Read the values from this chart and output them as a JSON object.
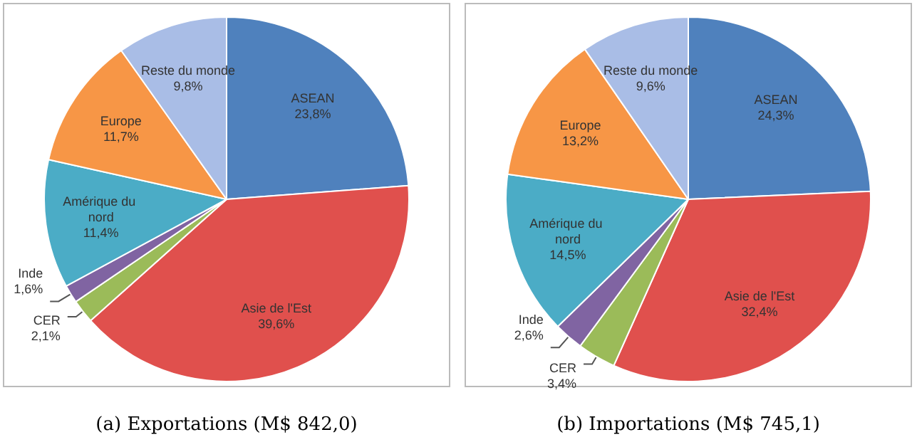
{
  "chart_data": [
    {
      "type": "pie",
      "title": "(a) Exportations (M$ 842,0)",
      "categories": [
        "ASEAN",
        "Asie de l'Est",
        "CER",
        "Inde",
        "Amérique du nord",
        "Europe",
        "Reste du monde"
      ],
      "values": [
        23.8,
        39.6,
        2.1,
        1.6,
        11.4,
        11.7,
        9.8
      ],
      "value_labels": [
        "23,8%",
        "39,6%",
        "2,1%",
        "1,6%",
        "11,4%",
        "11,7%",
        "9,8%"
      ],
      "colors": [
        "#4f81bd",
        "#e0504d",
        "#9bbb59",
        "#8064a2",
        "#4bacc6",
        "#f79646",
        "#a9bde6"
      ]
    },
    {
      "type": "pie",
      "title": "(b) Importations (M$ 745,1)",
      "categories": [
        "ASEAN",
        "Asie de l'Est",
        "CER",
        "Inde",
        "Amérique du nord",
        "Europe",
        "Reste du monde"
      ],
      "values": [
        24.3,
        32.4,
        3.4,
        2.6,
        14.5,
        13.2,
        9.6
      ],
      "value_labels": [
        "24,3%",
        "32,4%",
        "3,4%",
        "2,6%",
        "14,5%",
        "13,2%",
        "9,6%"
      ],
      "colors": [
        "#4f81bd",
        "#e0504d",
        "#9bbb59",
        "#8064a2",
        "#4bacc6",
        "#f79646",
        "#a9bde6"
      ]
    }
  ]
}
